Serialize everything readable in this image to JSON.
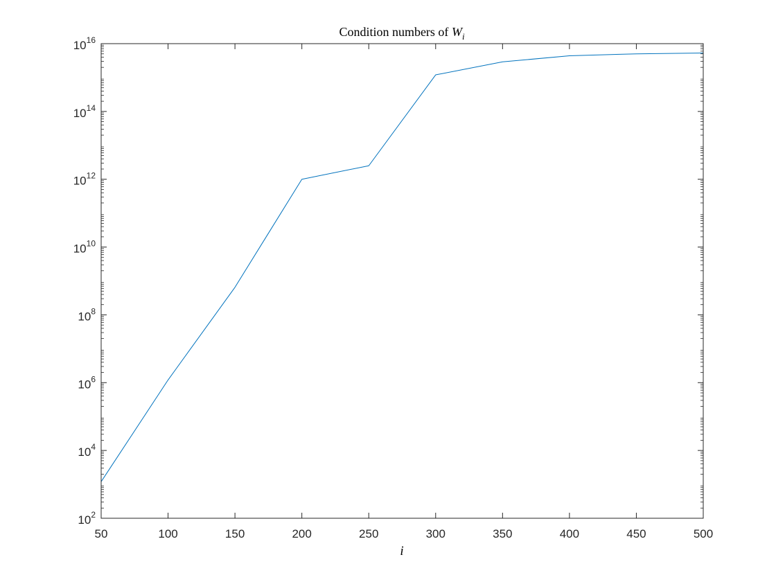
{
  "chart_data": {
    "type": "line",
    "title": {
      "text": "Condition numbers of ",
      "math_symbol": "W",
      "math_subscript": "i"
    },
    "xlabel": "i",
    "ylabel": "",
    "y_scale": "log",
    "xlim": [
      50,
      500
    ],
    "ylim": [
      100,
      1e+16
    ],
    "x_ticks": [
      50,
      100,
      150,
      200,
      250,
      300,
      350,
      400,
      450,
      500
    ],
    "x_tick_labels": [
      "50",
      "100",
      "150",
      "200",
      "250",
      "300",
      "350",
      "400",
      "450",
      "500"
    ],
    "y_ticks": [
      {
        "value": 100.0,
        "base": "10",
        "exp": "2"
      },
      {
        "value": 10000.0,
        "base": "10",
        "exp": "4"
      },
      {
        "value": 1000000.0,
        "base": "10",
        "exp": "6"
      },
      {
        "value": 100000000.0,
        "base": "10",
        "exp": "8"
      },
      {
        "value": 10000000000.0,
        "base": "10",
        "exp": "10"
      },
      {
        "value": 1000000000000.0,
        "base": "10",
        "exp": "12"
      },
      {
        "value": 100000000000000.0,
        "base": "10",
        "exp": "14"
      },
      {
        "value": 1e+16,
        "base": "10",
        "exp": "16"
      }
    ],
    "grid": false,
    "series": [
      {
        "color": "#0072BD",
        "x": [
          50,
          100,
          150,
          200,
          250,
          300,
          350,
          400,
          450,
          500
        ],
        "y": [
          1200,
          1200000.0,
          650000000.0,
          1000000000000.0,
          2500000000000.0,
          1200000000000000.0,
          2900000000000000.0,
          4400000000000000.0,
          5000000000000000.0,
          5300000000000000.0
        ]
      }
    ]
  }
}
